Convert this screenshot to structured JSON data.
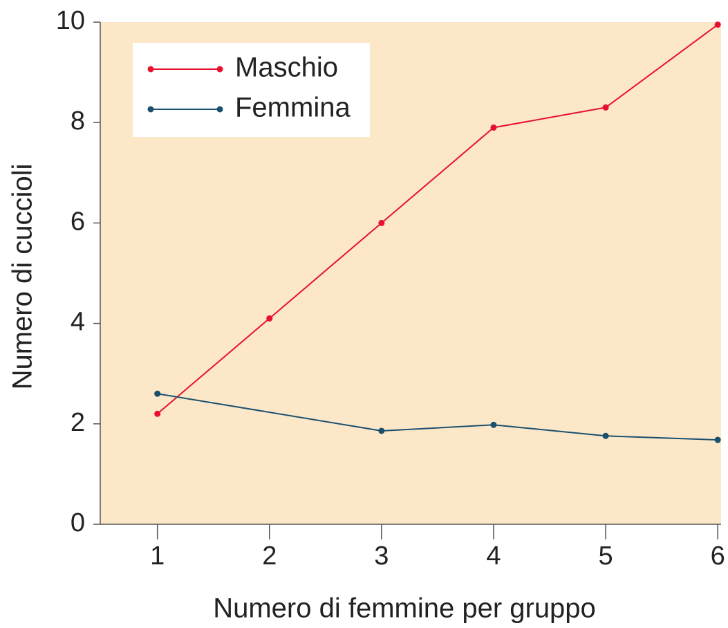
{
  "chart_data": {
    "type": "line",
    "xlabel": "Numero di femmine per gruppo",
    "ylabel": "Numero di cuccioli",
    "series": [
      {
        "name": "Maschio",
        "color": "#e8102e",
        "x": [
          1,
          2,
          3,
          4,
          5,
          6
        ],
        "values": [
          2.2,
          4.1,
          6.0,
          7.9,
          8.3,
          9.95
        ]
      },
      {
        "name": "Femmina",
        "color": "#1a4f6e",
        "x": [
          1,
          3,
          4,
          5,
          6
        ],
        "values": [
          2.6,
          1.86,
          1.98,
          1.76,
          1.68
        ]
      }
    ],
    "xlim": [
      0.49,
      6.03
    ],
    "xticks": [
      1,
      2,
      3,
      4,
      5,
      6
    ],
    "ylim": [
      0,
      10
    ],
    "yticks": [
      0,
      2,
      4,
      6,
      8,
      10
    ],
    "legend": "upper-left",
    "background": "#fce8c8"
  }
}
